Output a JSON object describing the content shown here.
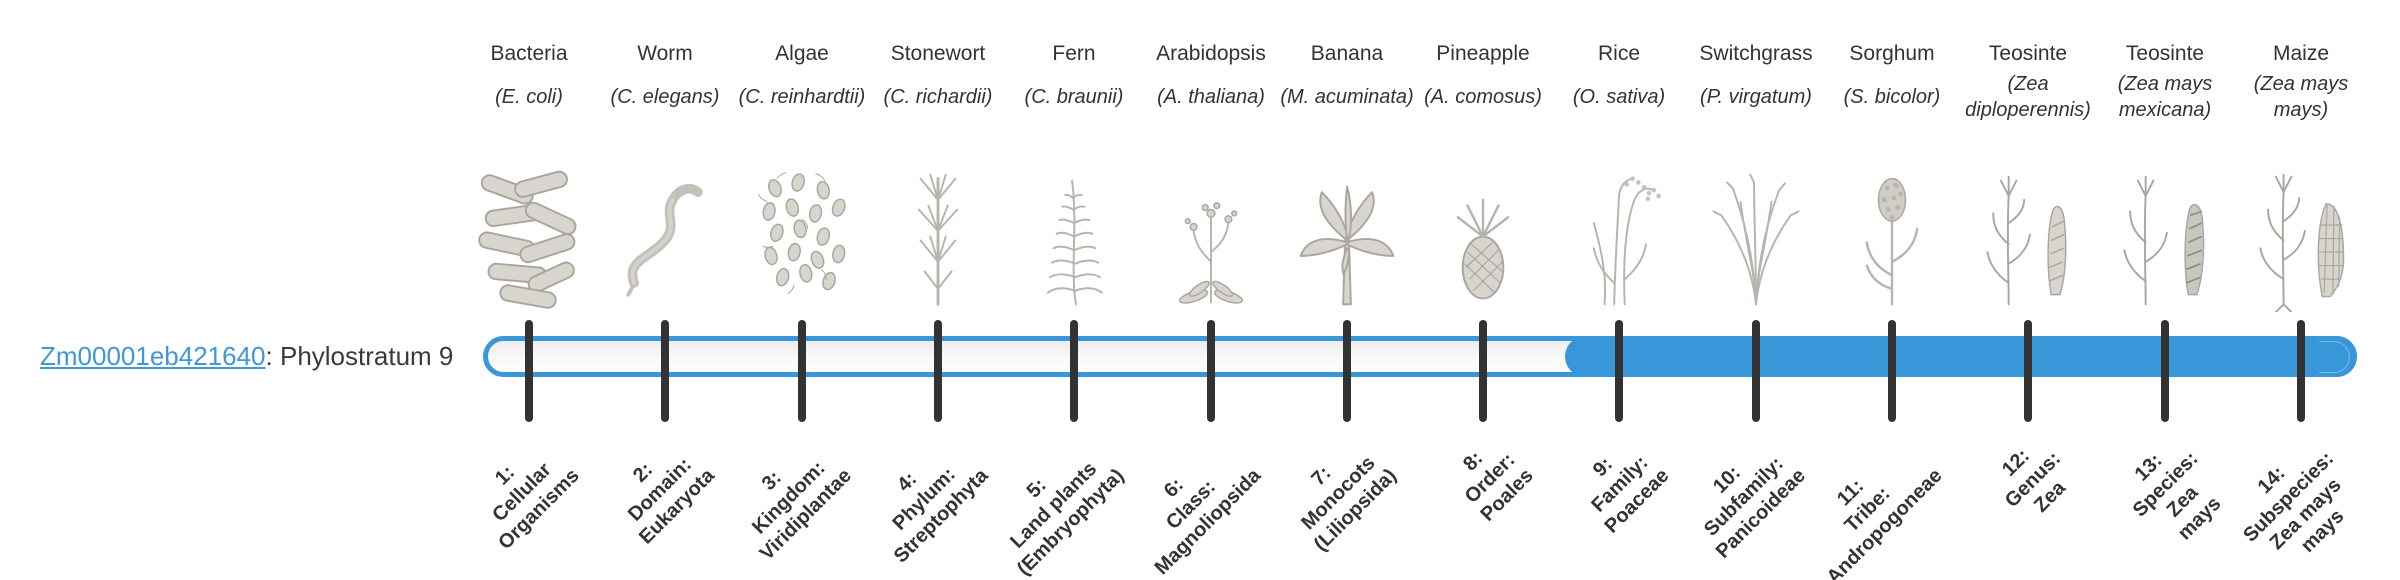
{
  "header": {
    "gene_id": "Zm00001eb421640",
    "suffix": ": Phylostratum 9",
    "link_color": "#3f97d6"
  },
  "timeline": {
    "phylostratum": 9,
    "total_strata": 14,
    "bar_fill_color": "#3897d8",
    "bar_border_color": "#3897d8",
    "bar_track_color": "#f5f5f5",
    "tick_color": "#333333"
  },
  "organisms": [
    {
      "common": "Bacteria",
      "scientific": "(E. coli)",
      "icon": "bacteria-illustration"
    },
    {
      "common": "Worm",
      "scientific": "(C. elegans)",
      "icon": "worm-illustration"
    },
    {
      "common": "Algae",
      "scientific": "(C. reinhardtii)",
      "icon": "algae-illustration"
    },
    {
      "common": "Stonewort",
      "scientific": "(C. richardii)",
      "icon": "stonewort-illustration"
    },
    {
      "common": "Fern",
      "scientific": "(C. braunii)",
      "icon": "fern-illustration"
    },
    {
      "common": "Arabidopsis",
      "scientific": "(A. thaliana)",
      "icon": "arabidopsis-illustration"
    },
    {
      "common": "Banana",
      "scientific": "(M. acuminata)",
      "icon": "banana-illustration"
    },
    {
      "common": "Pineapple",
      "scientific": "(A. comosus)",
      "icon": "pineapple-illustration"
    },
    {
      "common": "Rice",
      "scientific": "(O. sativa)",
      "icon": "rice-illustration"
    },
    {
      "common": "Switchgrass",
      "scientific": "(P. virgatum)",
      "icon": "switchgrass-illustration"
    },
    {
      "common": "Sorghum",
      "scientific": "(S. bicolor)",
      "icon": "sorghum-illustration"
    },
    {
      "common": "Teosinte",
      "scientific": "(Zea diploperennis)",
      "icon": "teosinte-diploperennis-illustration"
    },
    {
      "common": "Teosinte",
      "scientific": "(Zea mays mexicana)",
      "icon": "teosinte-mexicana-illustration"
    },
    {
      "common": "Maize",
      "scientific": "(Zea mays mays)",
      "icon": "maize-illustration"
    }
  ],
  "phylostrata": [
    {
      "label": "1:\nCellular\nOrganisms"
    },
    {
      "label": "2:\nDomain:\nEukaryota"
    },
    {
      "label": "3:\nKingdom:\nViridiplantae"
    },
    {
      "label": "4:\nPhylum:\nStreptophyta"
    },
    {
      "label": "5:\nLand plants\n(Embryophyta)"
    },
    {
      "label": "6:\nClass:\nMagnoliopsida"
    },
    {
      "label": "7:\nMonocots\n(Liliopsida)"
    },
    {
      "label": "8:\nOrder:\nPoales"
    },
    {
      "label": "9:\nFamily:\nPoaceae"
    },
    {
      "label": "10:\nSubfamily:\nPanicoideae"
    },
    {
      "label": "11:\nTribe:\nAndropogoneae"
    },
    {
      "label": "12:\nGenus:\nZea"
    },
    {
      "label": "13:\nSpecies:\nZea\nmays"
    },
    {
      "label": "14:\nSubspecies:\nZea mays\nmays"
    }
  ]
}
